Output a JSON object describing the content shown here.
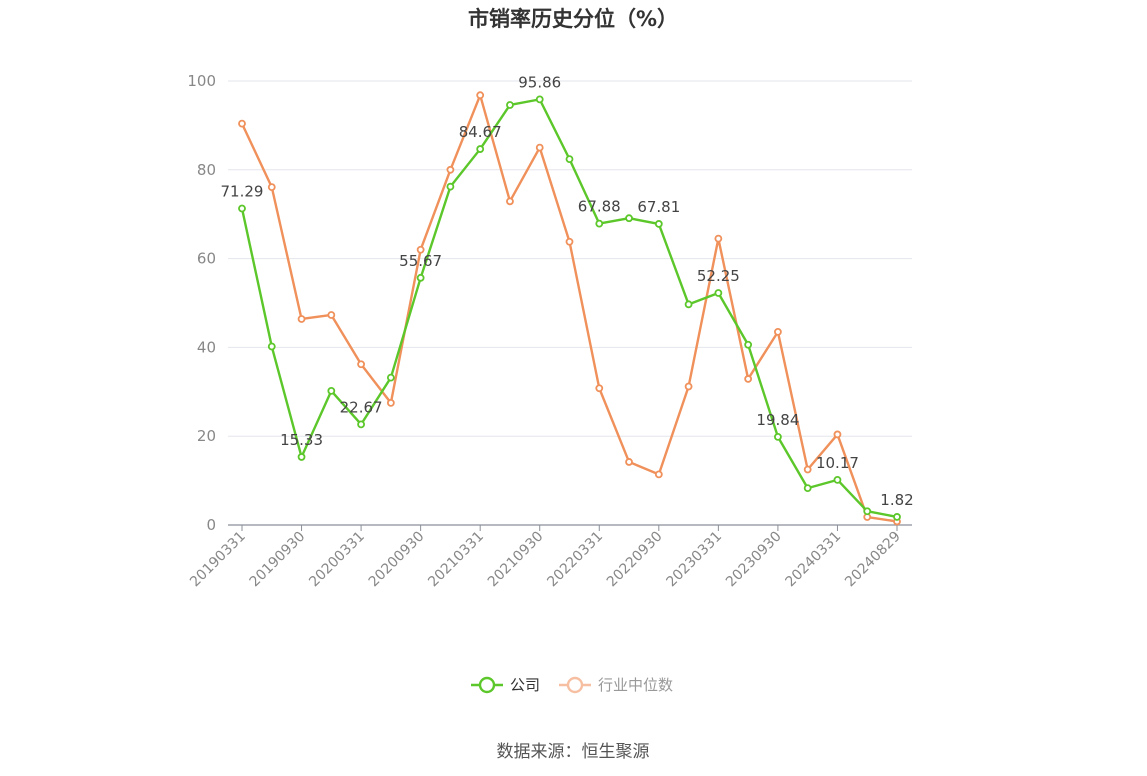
{
  "chart_data": {
    "type": "line",
    "title": "市销率历史分位（%）",
    "source": "数据来源：恒生聚源",
    "ylim": [
      0,
      100
    ],
    "yticks": [
      0,
      20,
      40,
      60,
      80,
      100
    ],
    "grid": true,
    "legend_position": "bottom",
    "x": [
      "20190331",
      "20190630",
      "20190930",
      "20191231",
      "20200331",
      "20200630",
      "20200930",
      "20201231",
      "20210331",
      "20210630",
      "20210930",
      "20211231",
      "20220331",
      "20220630",
      "20220930",
      "20221231",
      "20230331",
      "20230630",
      "20230930",
      "20231231",
      "20240331",
      "20240630",
      "20240829"
    ],
    "xtick_labels": [
      "20190331",
      "20190930",
      "20200331",
      "20200930",
      "20210331",
      "20210930",
      "20220331",
      "20220930",
      "20230331",
      "20230930",
      "20240331",
      "20240829"
    ],
    "series": [
      {
        "name": "公司",
        "color": "#5cc72a",
        "values": [
          71.29,
          40.2,
          15.33,
          30.2,
          22.67,
          33.2,
          55.67,
          76.2,
          84.67,
          94.6,
          95.86,
          82.4,
          67.88,
          69.1,
          67.81,
          49.7,
          52.25,
          40.6,
          19.84,
          8.3,
          10.17,
          3.1,
          1.82
        ],
        "labels": {
          "0": "71.29",
          "2": "15.33",
          "4": "22.67",
          "6": "55.67",
          "8": "84.67",
          "10": "95.86",
          "12": "67.88",
          "14": "67.81",
          "16": "52.25",
          "18": "19.84",
          "20": "10.17",
          "22": "1.82"
        }
      },
      {
        "name": "行业中位数",
        "color": "#f0905a",
        "values": [
          90.4,
          76.1,
          46.4,
          47.3,
          36.2,
          27.5,
          62.0,
          80.0,
          96.8,
          72.9,
          85.0,
          63.8,
          30.8,
          14.2,
          11.4,
          31.2,
          64.5,
          32.9,
          43.5,
          12.5,
          20.4,
          1.8,
          0.8
        ]
      }
    ]
  }
}
